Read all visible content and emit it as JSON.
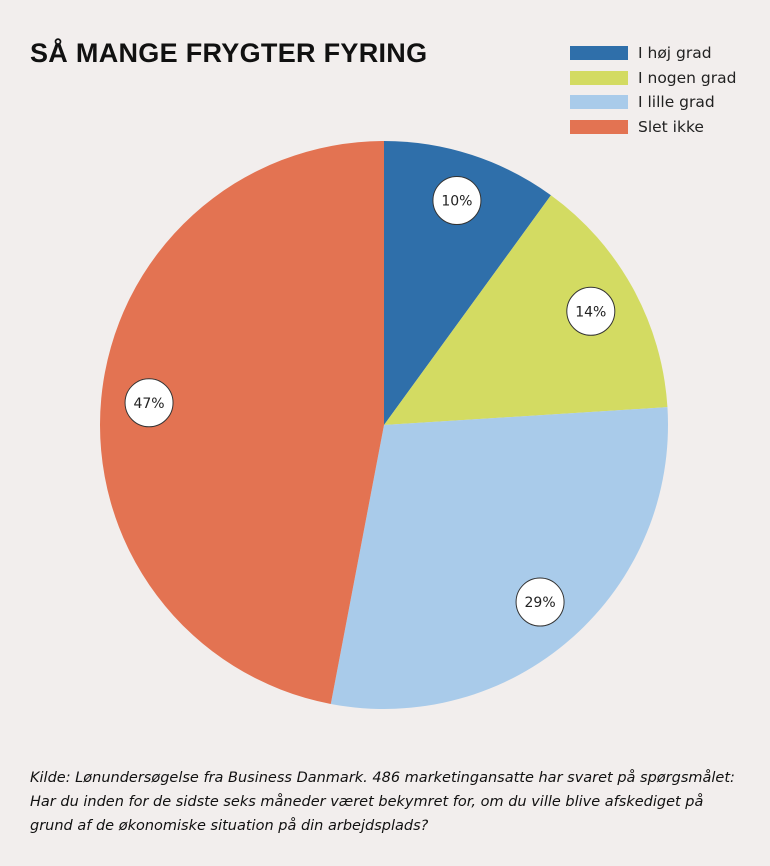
{
  "title": "SÅ MANGE FRYGTER FYRING",
  "chart_data": {
    "type": "pie",
    "title": "SÅ MANGE FRYGTER FYRING",
    "categories": [
      "I høj grad",
      "I nogen grad",
      "I lille grad",
      "Slet ikke"
    ],
    "values": [
      10,
      14,
      29,
      47
    ],
    "value_labels": [
      "10%",
      "14%",
      "29%",
      "47%"
    ],
    "colors": [
      "#2f6faa",
      "#d3db62",
      "#a9cbea",
      "#e37352"
    ],
    "legend_position": "top-right",
    "start": "top, clockwise"
  },
  "legend": [
    {
      "label": "I høj grad",
      "color": "#2f6faa"
    },
    {
      "label": "I nogen grad",
      "color": "#d3db62"
    },
    {
      "label": "I lille grad",
      "color": "#a9cbea"
    },
    {
      "label": "Slet ikke",
      "color": "#e37352"
    }
  ],
  "source": "Kilde: Lønundersøgelse fra Business Danmark. 486 marketingansatte har svaret på spørgsmålet: Har du inden for de sidste seks måneder været bekymret for, om du ville blive afskediget på grund af de økonomiske situation på din arbejdsplads?"
}
